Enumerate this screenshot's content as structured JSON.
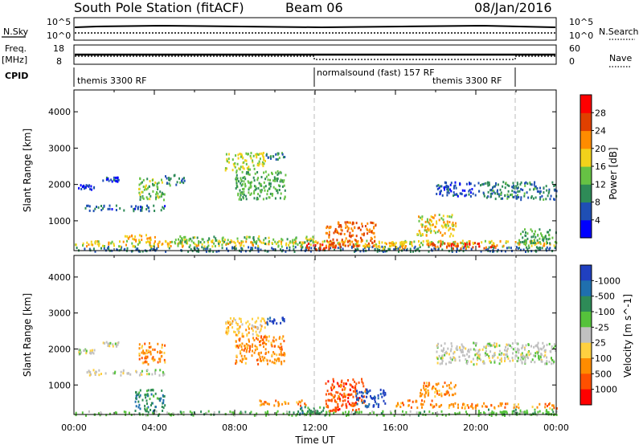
{
  "header": {
    "station": "South Pole Station (fitACF)",
    "beam": "Beam 06",
    "date": "08/Jan/2016"
  },
  "top_panels": {
    "nsky_label": "N.Sky",
    "nsearch_label": "N.Search",
    "freq_label_line1": "Freq.",
    "freq_label_line2": "[MHz]",
    "nave_label": "Nave",
    "cpid_label": "CPID",
    "nsky_ticks_left": [
      "10^5",
      "10^0"
    ],
    "nsky_ticks_right": [
      "10^5",
      "10^0"
    ],
    "freq_ticks_left": [
      "18",
      "8"
    ],
    "nave_ticks_right": [
      "60",
      "0"
    ],
    "cpid_segments": [
      {
        "label": "themis 3300 RF",
        "start_hour": 0
      },
      {
        "label": "normalsound (fast) 157 RF",
        "start_hour": 12
      },
      {
        "label": "themis 3300 RF",
        "start_hour": 22
      }
    ]
  },
  "axes": {
    "x_ticks": [
      "00:00",
      "04:00",
      "08:00",
      "12:00",
      "16:00",
      "20:00",
      "00:00"
    ],
    "x_title": "Time UT",
    "y_title": "Slant Range [km]",
    "y_ticks": [
      "1000",
      "2000",
      "3000",
      "4000"
    ]
  },
  "colorbars": {
    "power": {
      "title": "Power [dB]",
      "tick_labels": [
        "4",
        "8",
        "12",
        "16",
        "20",
        "24",
        "28"
      ],
      "colors": [
        "#0000ff",
        "#1f4fb4",
        "#2e8b57",
        "#66c244",
        "#f2d21b",
        "#ff8c00",
        "#e04000",
        "#ff0000"
      ]
    },
    "velocity": {
      "title": "Velocity [m s^-1]",
      "tick_labels": [
        "1000",
        "500",
        "100",
        "25",
        "-25",
        "-100",
        "-500",
        "-1000"
      ],
      "colors": [
        "#2040c0",
        "#1f6fae",
        "#2e8b57",
        "#55c23b",
        "#c0c0c0",
        "#ffd040",
        "#ff8c00",
        "#ff5000",
        "#ff0000"
      ]
    }
  },
  "chart_data": [
    {
      "type": "heatmap",
      "name": "power",
      "xlabel": "Time UT",
      "ylabel": "Slant Range [km]",
      "xlim_hours": [
        0,
        24
      ],
      "ylim_km": [
        180,
        4600
      ],
      "colorbar_range_db": [
        0,
        32
      ],
      "scatter_bands": [
        {
          "t0": 0.0,
          "t1": 24.0,
          "r0": 180,
          "r1": 320,
          "level": 8
        },
        {
          "t0": 0.0,
          "t1": 24.0,
          "r0": 320,
          "r1": 480,
          "level": 18
        },
        {
          "t0": 0.5,
          "t1": 4.5,
          "r0": 1300,
          "r1": 1450,
          "level": 7
        },
        {
          "t0": 0.2,
          "t1": 1.0,
          "r0": 1880,
          "r1": 2020,
          "level": 4
        },
        {
          "t0": 1.4,
          "t1": 2.2,
          "r0": 2100,
          "r1": 2220,
          "level": 5
        },
        {
          "t0": 2.5,
          "t1": 4.0,
          "r0": 450,
          "r1": 650,
          "level": 20
        },
        {
          "t0": 3.2,
          "t1": 4.5,
          "r0": 1600,
          "r1": 2200,
          "level": 14
        },
        {
          "t0": 4.5,
          "t1": 5.5,
          "r0": 2000,
          "r1": 2300,
          "level": 10
        },
        {
          "t0": 7.5,
          "t1": 9.5,
          "r0": 2400,
          "r1": 2900,
          "level": 16
        },
        {
          "t0": 8.0,
          "t1": 10.5,
          "r0": 1600,
          "r1": 2400,
          "level": 12
        },
        {
          "t0": 9.5,
          "t1": 10.5,
          "r0": 2700,
          "r1": 2900,
          "level": 10
        },
        {
          "t0": 5.0,
          "t1": 12.0,
          "r0": 400,
          "r1": 600,
          "level": 14
        },
        {
          "t0": 11.5,
          "t1": 13.0,
          "r0": 220,
          "r1": 420,
          "level": 28
        },
        {
          "t0": 12.5,
          "t1": 15.0,
          "r0": 300,
          "r1": 1000,
          "level": 24
        },
        {
          "t0": 14.5,
          "t1": 16.5,
          "r0": 250,
          "r1": 450,
          "level": 20
        },
        {
          "t0": 17.0,
          "t1": 19.0,
          "r0": 600,
          "r1": 1200,
          "level": 18
        },
        {
          "t0": 17.5,
          "t1": 21.0,
          "r0": 250,
          "r1": 420,
          "level": 26
        },
        {
          "t0": 18.0,
          "t1": 20.5,
          "r0": 1700,
          "r1": 2100,
          "level": 6
        },
        {
          "t0": 20.5,
          "t1": 24.0,
          "r0": 1600,
          "r1": 2100,
          "level": 9
        },
        {
          "t0": 22.0,
          "t1": 24.0,
          "r0": 400,
          "r1": 800,
          "level": 12
        }
      ]
    },
    {
      "type": "heatmap",
      "name": "velocity",
      "xlabel": "Time UT",
      "ylabel": "Slant Range [km]",
      "xlim_hours": [
        0,
        24
      ],
      "ylim_km": [
        180,
        4600
      ],
      "scatter_bands": [
        {
          "t0": 0.0,
          "t1": 24.0,
          "r0": 180,
          "r1": 300,
          "level": 3
        },
        {
          "t0": 0.5,
          "t1": 4.5,
          "r0": 1300,
          "r1": 1450,
          "level": 4
        },
        {
          "t0": 0.2,
          "t1": 1.0,
          "r0": 1880,
          "r1": 2020,
          "level": 4
        },
        {
          "t0": 1.4,
          "t1": 2.2,
          "r0": 2100,
          "r1": 2220,
          "level": 4
        },
        {
          "t0": 3.0,
          "t1": 4.5,
          "r0": 300,
          "r1": 900,
          "level": 2
        },
        {
          "t0": 3.2,
          "t1": 4.5,
          "r0": 1600,
          "r1": 2200,
          "level": 6
        },
        {
          "t0": 7.5,
          "t1": 9.5,
          "r0": 2400,
          "r1": 2900,
          "level": 5
        },
        {
          "t0": 8.0,
          "t1": 10.5,
          "r0": 1600,
          "r1": 2400,
          "level": 6
        },
        {
          "t0": 9.0,
          "t1": 11.5,
          "r0": 450,
          "r1": 600,
          "level": 6
        },
        {
          "t0": 9.5,
          "t1": 10.5,
          "r0": 2700,
          "r1": 2900,
          "level": 0
        },
        {
          "t0": 11.0,
          "t1": 12.5,
          "r0": 200,
          "r1": 420,
          "level": 2
        },
        {
          "t0": 12.5,
          "t1": 14.5,
          "r0": 300,
          "r1": 1200,
          "level": 7
        },
        {
          "t0": 14.0,
          "t1": 15.5,
          "r0": 400,
          "r1": 900,
          "level": 0
        },
        {
          "t0": 16.0,
          "t1": 18.0,
          "r0": 400,
          "r1": 600,
          "level": 6
        },
        {
          "t0": 17.0,
          "t1": 19.0,
          "r0": 700,
          "r1": 1100,
          "level": 6
        },
        {
          "t0": 18.0,
          "t1": 24.0,
          "r0": 380,
          "r1": 520,
          "level": 6
        },
        {
          "t0": 18.0,
          "t1": 24.0,
          "r0": 1600,
          "r1": 2200,
          "level": 4
        },
        {
          "t0": 20.0,
          "t1": 24.0,
          "r0": 200,
          "r1": 350,
          "level": 3
        }
      ]
    }
  ]
}
